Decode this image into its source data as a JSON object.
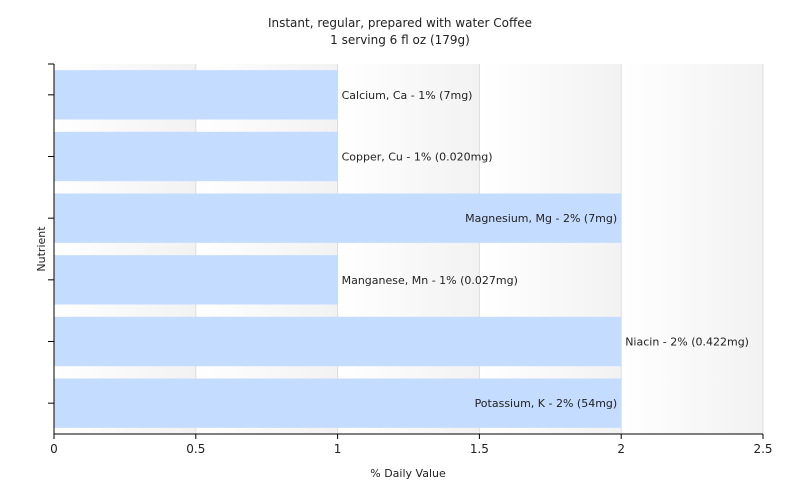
{
  "chart_data": {
    "type": "bar",
    "orientation": "horizontal",
    "title": "Instant, regular, prepared with water Coffee",
    "subtitle": "1 serving 6 fl oz (179g)",
    "xlabel": "% Daily Value",
    "ylabel": "Nutrient",
    "xlim": [
      0,
      2.5
    ],
    "xticks": [
      "0",
      "0.5",
      "1",
      "1.5",
      "2",
      "2.5"
    ],
    "grid": true,
    "bar_color": "#c4dcff",
    "categories": [
      "Calcium, Ca",
      "Copper, Cu",
      "Magnesium, Mg",
      "Manganese, Mn",
      "Niacin",
      "Potassium, K"
    ],
    "values": [
      1,
      1,
      2,
      1,
      2,
      2
    ],
    "labels": [
      "Calcium, Ca - 1% (7mg)",
      "Copper, Cu - 1% (0.020mg)",
      "Magnesium, Mg - 2% (7mg)",
      "Manganese, Mn - 1% (0.027mg)",
      "Niacin - 2% (0.422mg)",
      "Potassium, K - 2% (54mg)"
    ]
  }
}
